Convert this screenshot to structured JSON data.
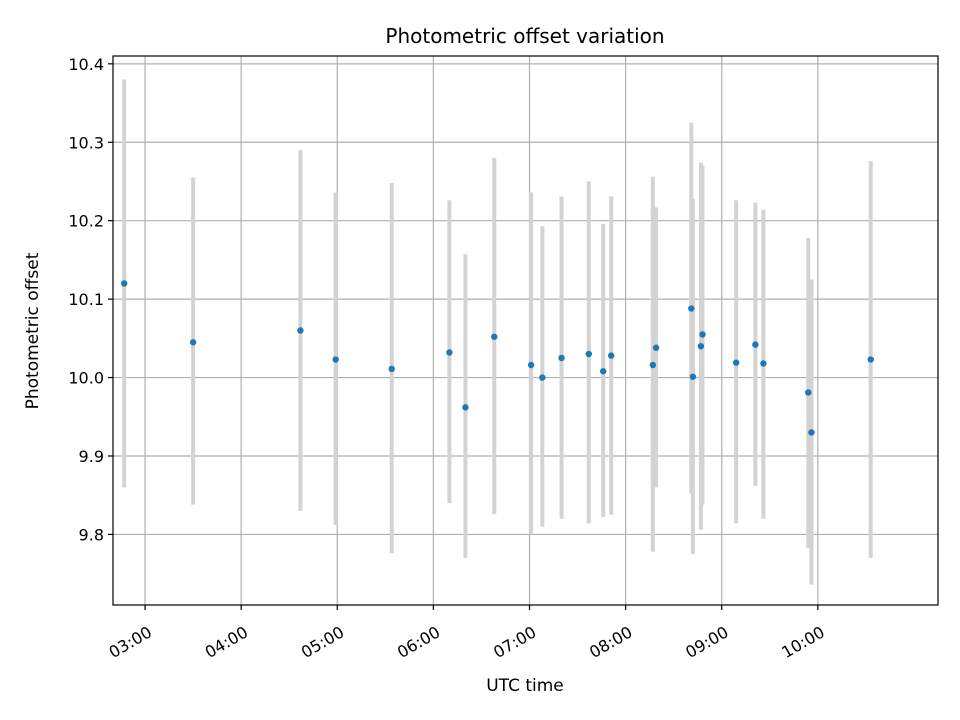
{
  "chart_data": {
    "type": "scatter",
    "title": "Photometric offset variation",
    "xlabel": "UTC time",
    "ylabel": "Photometric offset",
    "x_unit": "UTC time (HH:MM)",
    "xlim": [
      "02:40",
      "11:15"
    ],
    "ylim": [
      9.71,
      10.41
    ],
    "x_ticks": [
      "03:00",
      "04:00",
      "05:00",
      "06:00",
      "07:00",
      "08:00",
      "09:00",
      "10:00"
    ],
    "y_ticks": [
      "9.8",
      "9.9",
      "10.0",
      "10.1",
      "10.2",
      "10.3",
      "10.4"
    ],
    "grid": true,
    "series": [
      {
        "points": [
          {
            "x": "02:47",
            "y": 10.12,
            "err_low": 9.86,
            "err_high": 10.38
          },
          {
            "x": "03:30",
            "y": 10.045,
            "err_low": 9.838,
            "err_high": 10.255
          },
          {
            "x": "04:37",
            "y": 10.06,
            "err_low": 9.83,
            "err_high": 10.29
          },
          {
            "x": "04:59",
            "y": 10.023,
            "err_low": 9.812,
            "err_high": 10.236
          },
          {
            "x": "05:34",
            "y": 10.011,
            "err_low": 9.776,
            "err_high": 10.248
          },
          {
            "x": "06:10",
            "y": 10.032,
            "err_low": 9.84,
            "err_high": 10.226
          },
          {
            "x": "06:20",
            "y": 9.962,
            "err_low": 9.77,
            "err_high": 10.157
          },
          {
            "x": "06:38",
            "y": 10.052,
            "err_low": 9.826,
            "err_high": 10.28
          },
          {
            "x": "07:01",
            "y": 10.016,
            "err_low": 9.8,
            "err_high": 10.236
          },
          {
            "x": "07:08",
            "y": 10.0,
            "err_low": 9.81,
            "err_high": 10.193
          },
          {
            "x": "07:20",
            "y": 10.025,
            "err_low": 9.82,
            "err_high": 10.231
          },
          {
            "x": "07:37",
            "y": 10.03,
            "err_low": 9.814,
            "err_high": 10.25
          },
          {
            "x": "07:46",
            "y": 10.008,
            "err_low": 9.822,
            "err_high": 10.196
          },
          {
            "x": "07:51",
            "y": 10.028,
            "err_low": 9.825,
            "err_high": 10.231
          },
          {
            "x": "08:17",
            "y": 10.016,
            "err_low": 9.778,
            "err_high": 10.256
          },
          {
            "x": "08:19",
            "y": 10.038,
            "err_low": 9.86,
            "err_high": 10.217
          },
          {
            "x": "08:41",
            "y": 10.088,
            "err_low": 9.852,
            "err_high": 10.325
          },
          {
            "x": "08:42",
            "y": 10.001,
            "err_low": 9.775,
            "err_high": 10.228
          },
          {
            "x": "08:47",
            "y": 10.04,
            "err_low": 9.806,
            "err_high": 10.274
          },
          {
            "x": "08:48",
            "y": 10.055,
            "err_low": 9.838,
            "err_high": 10.27
          },
          {
            "x": "09:09",
            "y": 10.019,
            "err_low": 9.814,
            "err_high": 10.226
          },
          {
            "x": "09:21",
            "y": 10.042,
            "err_low": 9.862,
            "err_high": 10.223
          },
          {
            "x": "09:26",
            "y": 10.018,
            "err_low": 9.82,
            "err_high": 10.214
          },
          {
            "x": "09:54",
            "y": 9.981,
            "err_low": 9.783,
            "err_high": 10.178
          },
          {
            "x": "09:56",
            "y": 9.93,
            "err_low": 9.736,
            "err_high": 10.125
          },
          {
            "x": "10:33",
            "y": 10.023,
            "err_low": 9.77,
            "err_high": 10.276
          }
        ]
      }
    ]
  },
  "colors": {
    "point": "#1f77b4",
    "errorbar": "#d3d3d3",
    "grid": "#b0b0b0",
    "axes": "#000000"
  }
}
